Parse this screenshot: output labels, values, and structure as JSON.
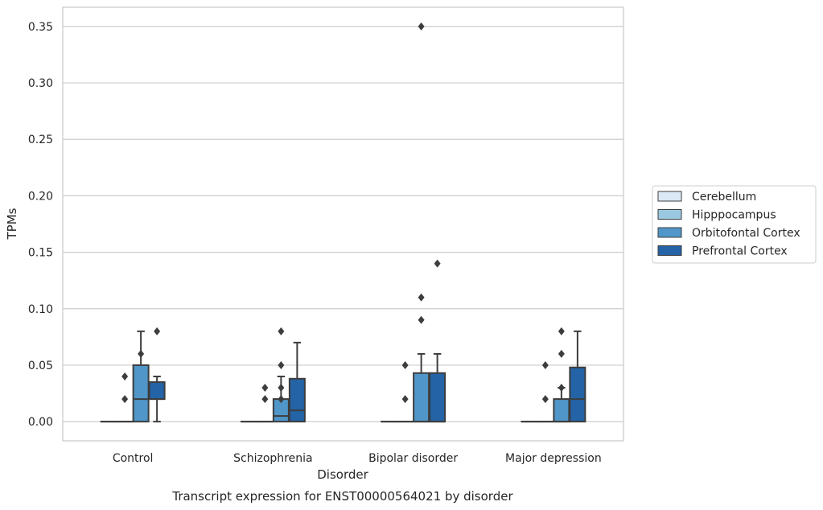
{
  "chart_data": {
    "type": "box",
    "title": "Transcript expression for ENST00000564021 by disorder",
    "xlabel": "Disorder",
    "ylabel": "TPMs",
    "ylim": [
      -0.017,
      0.367
    ],
    "yticks": [
      0.0,
      0.05,
      0.1,
      0.15,
      0.2,
      0.25,
      0.3,
      0.35
    ],
    "ytick_labels": [
      "0.00",
      "0.05",
      "0.10",
      "0.15",
      "0.20",
      "0.25",
      "0.30",
      "0.35"
    ],
    "categories": [
      "Control",
      "Schizophrenia",
      "Bipolar disorder",
      "Major depression"
    ],
    "grid": true,
    "legend_position": "right",
    "series": [
      {
        "name": "Cerebellum",
        "color": "#dbe9f6",
        "boxes": [
          {
            "q1": 0,
            "median": 0,
            "q3": 0,
            "whisker_low": 0,
            "whisker_high": 0,
            "outliers": []
          },
          {
            "q1": 0,
            "median": 0,
            "q3": 0,
            "whisker_low": 0,
            "whisker_high": 0,
            "outliers": []
          },
          {
            "q1": 0,
            "median": 0,
            "q3": 0,
            "whisker_low": 0,
            "whisker_high": 0,
            "outliers": []
          },
          {
            "q1": 0,
            "median": 0,
            "q3": 0,
            "whisker_low": 0,
            "whisker_high": 0,
            "outliers": []
          }
        ]
      },
      {
        "name": "Hipppocampus",
        "color": "#9ac8e0",
        "boxes": [
          {
            "q1": 0,
            "median": 0,
            "q3": 0,
            "whisker_low": 0,
            "whisker_high": 0,
            "outliers": [
              0.02,
              0.04
            ]
          },
          {
            "q1": 0,
            "median": 0,
            "q3": 0,
            "whisker_low": 0,
            "whisker_high": 0,
            "outliers": [
              0.02,
              0.03
            ]
          },
          {
            "q1": 0,
            "median": 0,
            "q3": 0,
            "whisker_low": 0,
            "whisker_high": 0,
            "outliers": [
              0.02,
              0.05
            ]
          },
          {
            "q1": 0,
            "median": 0,
            "q3": 0,
            "whisker_low": 0,
            "whisker_high": 0,
            "outliers": [
              0.02,
              0.05
            ]
          }
        ]
      },
      {
        "name": "Orbitofontal Cortex",
        "color": "#5096c8",
        "boxes": [
          {
            "q1": 0,
            "median": 0.02,
            "q3": 0.05,
            "whisker_low": 0,
            "whisker_high": 0.08,
            "outliers": [
              0.06
            ]
          },
          {
            "q1": 0,
            "median": 0.005,
            "q3": 0.02,
            "whisker_low": 0,
            "whisker_high": 0.04,
            "outliers": [
              0.02,
              0.03,
              0.05,
              0.08
            ]
          },
          {
            "q1": 0,
            "median": 0,
            "q3": 0.043,
            "whisker_low": 0,
            "whisker_high": 0.06,
            "outliers": [
              0.09,
              0.11,
              0.35
            ]
          },
          {
            "q1": 0,
            "median": 0,
            "q3": 0.02,
            "whisker_low": 0,
            "whisker_high": 0.03,
            "outliers": [
              0.03,
              0.06,
              0.08
            ]
          }
        ]
      },
      {
        "name": "Prefrontal Cortex",
        "color": "#2363a6",
        "boxes": [
          {
            "q1": 0.02,
            "median": 0.02,
            "q3": 0.035,
            "whisker_low": 0,
            "whisker_high": 0.04,
            "outliers": [
              0.08
            ]
          },
          {
            "q1": 0,
            "median": 0.01,
            "q3": 0.038,
            "whisker_low": 0,
            "whisker_high": 0.07,
            "outliers": []
          },
          {
            "q1": 0,
            "median": 0,
            "q3": 0.043,
            "whisker_low": 0,
            "whisker_high": 0.06,
            "outliers": [
              0.14
            ]
          },
          {
            "q1": 0,
            "median": 0.02,
            "q3": 0.048,
            "whisker_low": 0,
            "whisker_high": 0.08,
            "outliers": []
          }
        ]
      }
    ],
    "colors": {
      "grid": "#cccccc",
      "frame": "#cccccc",
      "box_edge": "#3d3d3d",
      "text": "#262626"
    }
  }
}
